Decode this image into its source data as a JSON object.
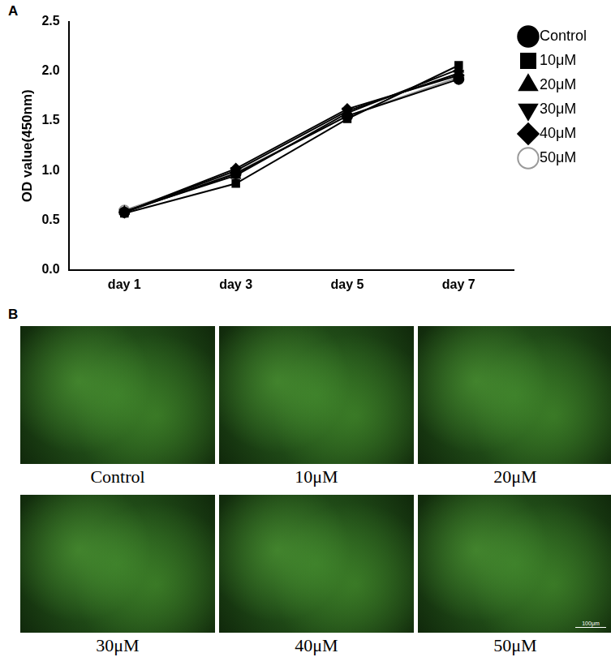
{
  "chart_data": {
    "type": "line",
    "panel_label": "A",
    "y_label": "OD value(450nm)",
    "categories": [
      "day 1",
      "day 3",
      "day 5",
      "day 7"
    ],
    "series": [
      {
        "name": "Control",
        "color": "#000000",
        "marker": "circle",
        "values": [
          0.58,
          0.97,
          1.55,
          1.92
        ]
      },
      {
        "name": "10μM",
        "color": "#000000",
        "marker": "square",
        "values": [
          0.57,
          0.87,
          1.52,
          2.06
        ]
      },
      {
        "name": "20μM",
        "color": "#000000",
        "marker": "triangle",
        "values": [
          0.59,
          0.95,
          1.58,
          2.02
        ]
      },
      {
        "name": "30μM",
        "color": "#000000",
        "marker": "triangle_down",
        "values": [
          0.58,
          1.0,
          1.6,
          1.98
        ]
      },
      {
        "name": "40μM",
        "color": "#000000",
        "marker": "diamond",
        "values": [
          0.58,
          1.02,
          1.62,
          1.96
        ]
      },
      {
        "name": "50μM",
        "color": "#999999",
        "marker": "open_circle",
        "values": [
          0.6,
          0.98,
          1.55,
          1.94
        ]
      }
    ],
    "ylim": [
      0,
      2.5
    ],
    "yticks": [
      {
        "value": 0,
        "label": "0.0"
      },
      {
        "value": 0.5,
        "label": "0.5"
      },
      {
        "value": 1,
        "label": "1.0"
      },
      {
        "value": 1.5,
        "label": "1.5"
      },
      {
        "value": 2,
        "label": "2.0"
      },
      {
        "value": 2.5,
        "label": "2.5"
      }
    ],
    "grid": false,
    "legend": "right"
  },
  "image_panel": {
    "panel_label": "B",
    "images": [
      "Control",
      "10μM",
      "20μM",
      "30μM",
      "40μM",
      "50μM"
    ],
    "scale_bar": "100μm"
  }
}
